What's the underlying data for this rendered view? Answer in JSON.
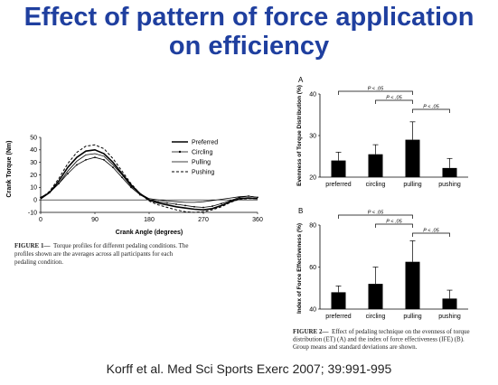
{
  "title_line1": "Effect of pattern of force application",
  "title_line2": "on efficiency",
  "citation": "Korff et al. Med Sci Sports Exerc 2007; 39:991-995",
  "colors": {
    "title": "#1f3f9f",
    "bars": "#000000"
  },
  "chart_data": [
    {
      "type": "line",
      "xlabel": "Crank Angle (degrees)",
      "ylabel": "Crank Torque (Nm)",
      "xlim": [
        0,
        360
      ],
      "ylim": [
        -10,
        50
      ],
      "xticks": [
        "0",
        "90",
        "180",
        "270",
        "360"
      ],
      "yticks": [
        "-10",
        "0",
        "10",
        "20",
        "30",
        "40",
        "50"
      ],
      "legend_position": "top-right",
      "x": [
        0,
        15,
        30,
        45,
        60,
        75,
        90,
        105,
        120,
        135,
        150,
        165,
        180,
        195,
        210,
        225,
        240,
        255,
        270,
        285,
        300,
        315,
        330,
        345,
        360
      ],
      "series": [
        {
          "name": "Preferred",
          "style": "solid-thick",
          "values": [
            1,
            6,
            15,
            26,
            34,
            39,
            40,
            37,
            30,
            21,
            12,
            5,
            0,
            -2.5,
            -4,
            -5.5,
            -6.5,
            -7.5,
            -8,
            -7,
            -4.5,
            -1.5,
            1,
            1.5,
            1
          ]
        },
        {
          "name": "Circling",
          "style": "solid-dot",
          "values": [
            2,
            6,
            13,
            21,
            28,
            32,
            34,
            32,
            26,
            18,
            10,
            4,
            0,
            -1.5,
            -2.5,
            -3.5,
            -4.5,
            -5.5,
            -6,
            -5,
            -3,
            -0.5,
            2,
            3,
            2
          ]
        },
        {
          "name": "Pulling",
          "style": "solid-thin",
          "values": [
            2,
            6,
            13,
            23,
            31,
            36,
            37,
            35,
            28,
            20,
            11,
            5,
            1,
            0,
            -1,
            -1.5,
            -2,
            -2,
            -1.5,
            -0.5,
            0.5,
            1.5,
            2.5,
            3,
            2
          ]
        },
        {
          "name": "Pushing",
          "style": "dashed",
          "values": [
            1,
            7,
            17,
            29,
            38,
            43,
            44,
            41,
            33,
            23,
            13,
            5,
            -1,
            -4,
            -6,
            -8,
            -9.5,
            -10,
            -9.5,
            -8,
            -5.5,
            -2,
            0.5,
            1,
            1
          ]
        }
      ],
      "caption_label": "FIGURE 1—",
      "caption_lines": [
        "Torque profiles for different pedaling conditions. The",
        "profiles shown are the averages across all participants for each",
        "pedaling condition."
      ]
    },
    {
      "type": "bar",
      "panel": "A",
      "ylabel": "Evenness of Torque Distribution (%)",
      "ylim": [
        20,
        40
      ],
      "yticks": [
        "20",
        "30",
        "40"
      ],
      "categories": [
        "preferred",
        "circling",
        "pulling",
        "pushing"
      ],
      "values": [
        24,
        25.5,
        29,
        22.2
      ],
      "errors": [
        2,
        2.3,
        4.3,
        2.3
      ],
      "significance": [
        {
          "from": 0,
          "to": 2,
          "label": "P < .05"
        },
        {
          "from": 1,
          "to": 2,
          "label": "P < .05"
        },
        {
          "from": 2,
          "to": 3,
          "label": "P < .05"
        }
      ]
    },
    {
      "type": "bar",
      "panel": "B",
      "ylabel": "Index of Force Effectiveness (%)",
      "ylim": [
        40,
        80
      ],
      "yticks": [
        "40",
        "60",
        "80"
      ],
      "categories": [
        "preferred",
        "circling",
        "pulling",
        "pushing"
      ],
      "values": [
        48,
        52,
        62.5,
        45
      ],
      "errors": [
        3,
        8,
        10,
        4
      ],
      "significance": [
        {
          "from": 0,
          "to": 2,
          "label": "P < .05"
        },
        {
          "from": 1,
          "to": 2,
          "label": "P < .05"
        },
        {
          "from": 2,
          "to": 3,
          "label": "P < .05"
        }
      ],
      "caption_label": "FIGURE 2—",
      "caption_lines": [
        "Effect of pedaling technique on the evenness of torque",
        "distribution (ET) (A) and the index of force effectiveness (IFE) (B).",
        "Group means and standard deviations are shown."
      ]
    }
  ]
}
